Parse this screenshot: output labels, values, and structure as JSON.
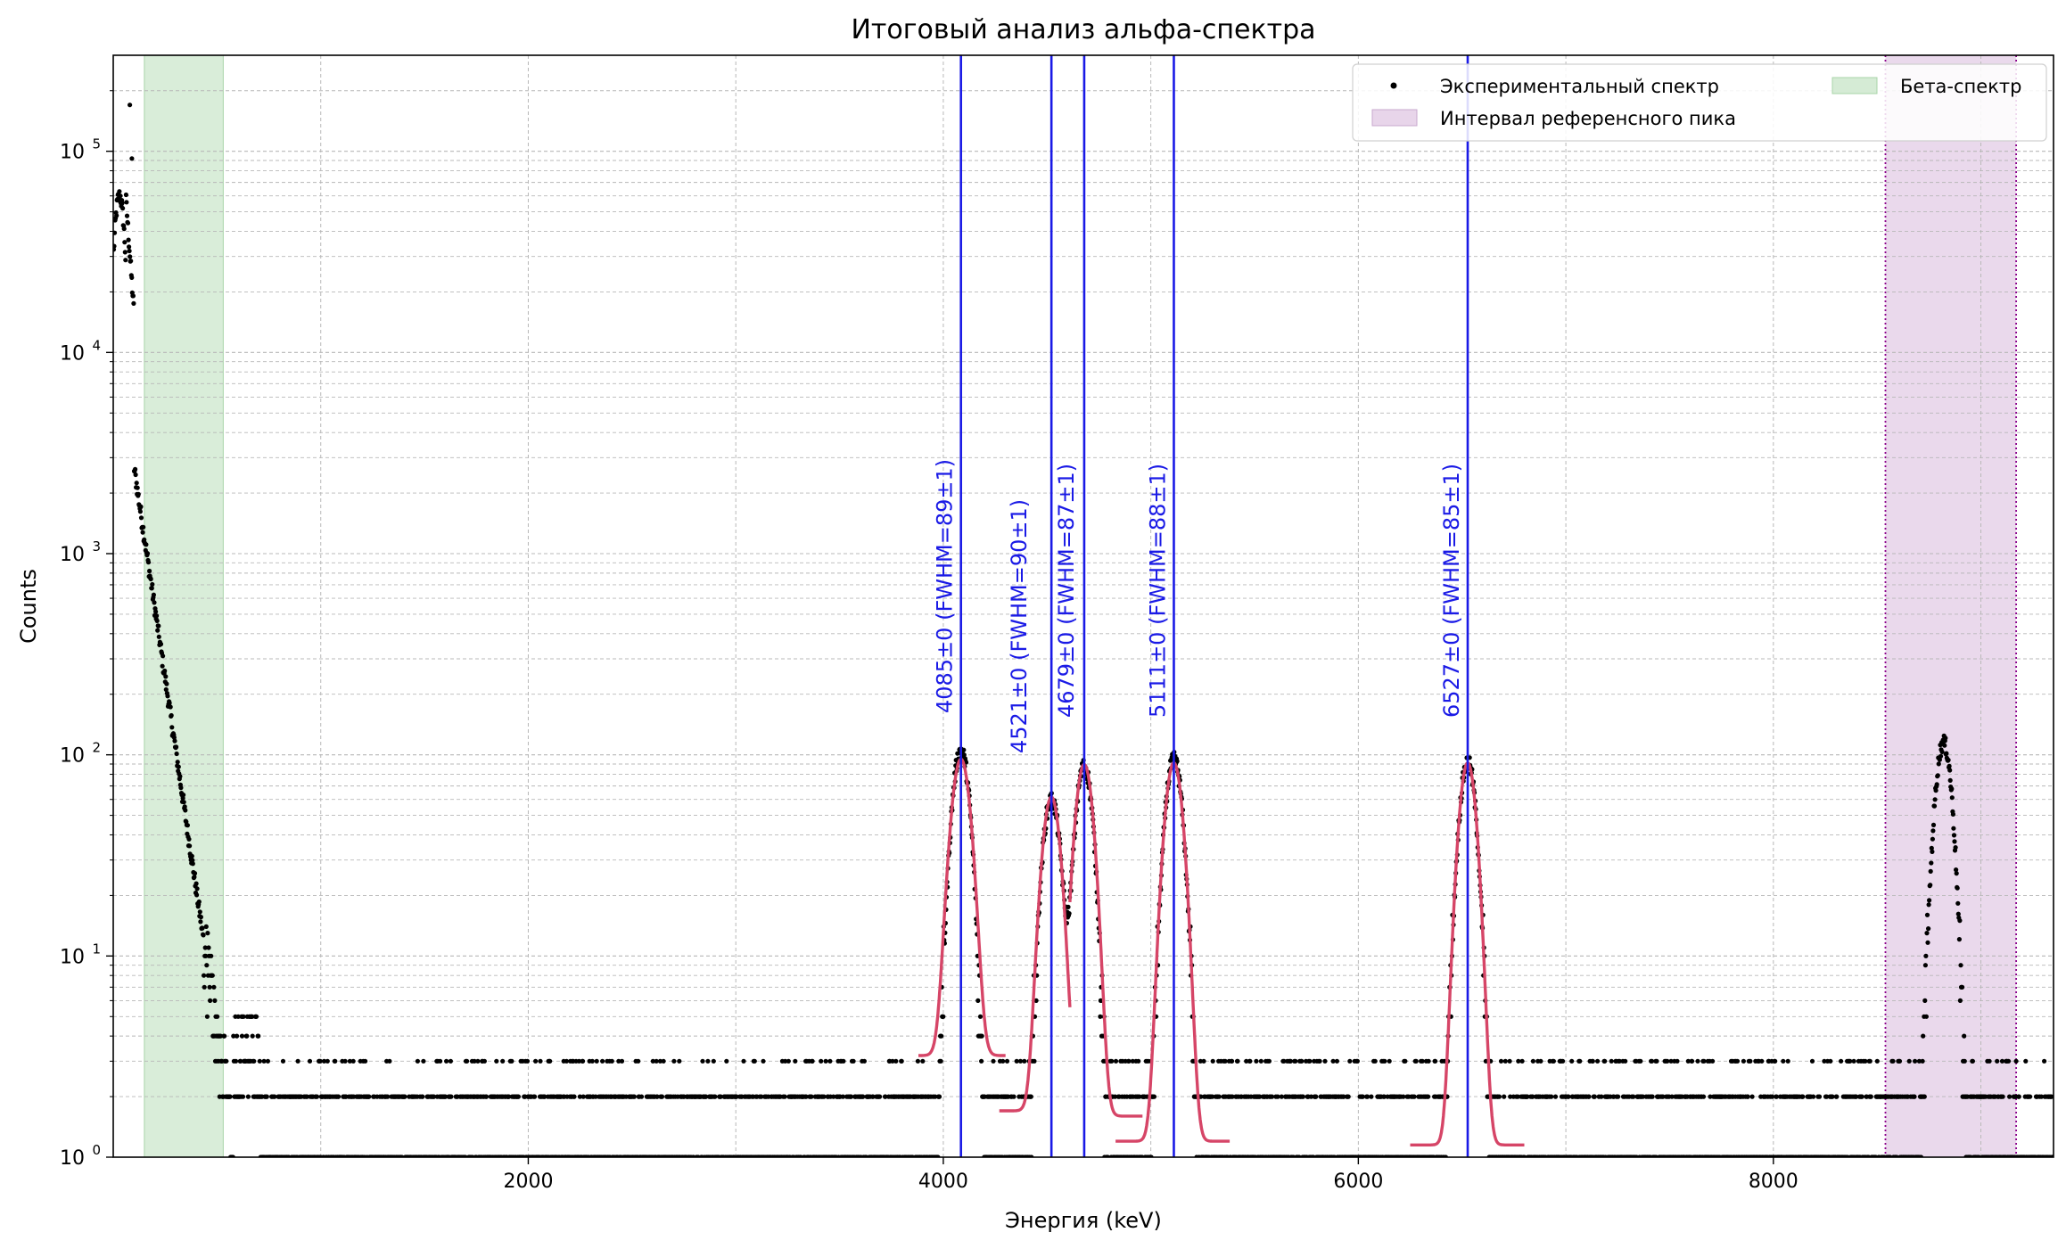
{
  "chart_data": {
    "type": "scatter",
    "title": "Итоговый анализ альфа-спектра",
    "xlabel": "Энергия (keV)",
    "ylabel": "Counts",
    "xlim": [
      0,
      9350
    ],
    "ylim": [
      1,
      300000
    ],
    "yscale": "log",
    "grid": true,
    "x_ticks": [
      {
        "value": 2000,
        "label": "2000"
      },
      {
        "value": 4000,
        "label": "4000"
      },
      {
        "value": 6000,
        "label": "6000"
      },
      {
        "value": 8000,
        "label": "8000"
      }
    ],
    "y_ticks": [
      {
        "value": 1,
        "base": "10",
        "exp": "0"
      },
      {
        "value": 10,
        "base": "10",
        "exp": "1"
      },
      {
        "value": 100,
        "base": "10",
        "exp": "2"
      },
      {
        "value": 1000,
        "base": "10",
        "exp": "3"
      },
      {
        "value": 10000,
        "base": "10",
        "exp": "4"
      },
      {
        "value": 100000,
        "base": "10",
        "exp": "5"
      }
    ],
    "legend": {
      "placement": "top-right",
      "entries": [
        {
          "label": "Экспериментальный спектр",
          "kind": "marker",
          "color": "#000000"
        },
        {
          "label": "Бета-спектр",
          "kind": "patch",
          "color": "#d5ebd5"
        },
        {
          "label": "Интервал референсного пика",
          "kind": "patch",
          "color": "#e8d5ea"
        }
      ]
    },
    "spans": [
      {
        "name": "beta",
        "x0": 150,
        "x1": 530,
        "color": "#d5ebd5",
        "edge": "#a9d4a9"
      },
      {
        "name": "reference",
        "x0": 8540,
        "x1": 9170,
        "color": "#e8d5ea",
        "edge": "#8b008b"
      }
    ],
    "spectrum": {
      "low_energy": {
        "peak_x": 30,
        "peak_y": 60000,
        "spikes": [
          [
            80,
            170000
          ],
          [
            90,
            92000
          ]
        ],
        "knee_x": 100,
        "knee_y": 2700
      },
      "alpha_peaks": [
        {
          "center": 4085,
          "height": 105,
          "fwhm": 89,
          "floor": 3.2
        },
        {
          "center": 4521,
          "height": 60,
          "fwhm": 90,
          "floor": 1.7
        },
        {
          "center": 4679,
          "height": 88,
          "fwhm": 87,
          "floor": 1.6
        },
        {
          "center": 5111,
          "height": 95,
          "fwhm": 88,
          "floor": 1.2
        },
        {
          "center": 6527,
          "height": 92,
          "fwhm": 85,
          "floor": 1.15
        },
        {
          "center": 8820,
          "height": 115,
          "fwhm": 85,
          "floor": 1
        }
      ],
      "color": "#000000"
    },
    "fit_color": "#d64567",
    "peak_line_color": "#1a1ae6",
    "peak_lines": [
      {
        "x": 4085,
        "label": "4085±0 (FWHM=89±1)"
      },
      {
        "x": 4521,
        "label": "4521±0 (FWHM=90±1)"
      },
      {
        "x": 4679,
        "label": "4679±0 (FWHM=87±1)"
      },
      {
        "x": 5111,
        "label": "5111±0 (FWHM=88±1)"
      },
      {
        "x": 6527,
        "label": "6527±0 (FWHM=85±1)"
      }
    ],
    "fits": [
      {
        "center": 4085,
        "height": 92,
        "sigma": 40,
        "floor": 3.2,
        "x0": 3880,
        "x1": 4300
      },
      {
        "center": 4521,
        "height": 60,
        "sigma": 38,
        "floor": 1.7,
        "x0": 4270,
        "x1": 4610
      },
      {
        "center": 4679,
        "height": 88,
        "sigma": 38,
        "floor": 1.6,
        "x0": 4610,
        "x1": 4960
      },
      {
        "center": 5111,
        "height": 90,
        "sigma": 38,
        "floor": 1.2,
        "x0": 4830,
        "x1": 5380
      },
      {
        "center": 6527,
        "height": 90,
        "sigma": 36,
        "floor": 1.15,
        "x0": 6250,
        "x1": 6800
      }
    ]
  }
}
